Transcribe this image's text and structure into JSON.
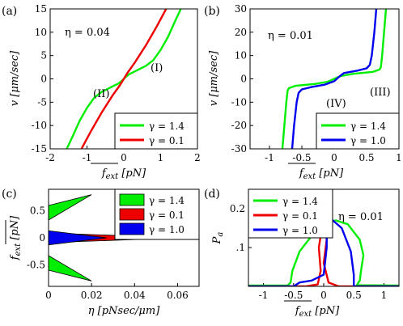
{
  "chart_data": [
    {
      "panel": "(a)",
      "type": "line",
      "xlabel": "f_ext [pN]",
      "ylabel": "v [μm/sec]",
      "xlim": [
        -2,
        2
      ],
      "ylim": [
        -15,
        15
      ],
      "xticks": [
        -2,
        -1,
        0,
        1,
        2
      ],
      "yticks": [
        -15,
        -10,
        -5,
        0,
        5,
        10,
        15
      ],
      "annotation": "η = 0.04",
      "curve_labels": [
        "(I)",
        "(II)"
      ],
      "legend": "bottom-right",
      "series": [
        {
          "name": "γ = 1.4",
          "color": "#00ee00",
          "x": [
            -1.55,
            -1.4,
            -1.2,
            -1.0,
            -0.8,
            -0.6,
            -0.45,
            -0.3,
            -0.15,
            -0.05,
            0.0,
            0.05,
            0.15,
            0.3,
            0.45,
            0.6,
            0.8,
            1.0,
            1.2,
            1.4,
            1.55
          ],
          "y": [
            -15,
            -12.5,
            -9,
            -6.2,
            -4.0,
            -2.8,
            -2.2,
            -1.6,
            -1.0,
            -0.4,
            0,
            0.4,
            1.0,
            1.6,
            2.2,
            2.8,
            4.0,
            6.2,
            9,
            12.5,
            15
          ]
        },
        {
          "name": "γ = 0.1",
          "color": "#ee0000",
          "x": [
            -1.15,
            -0.9,
            -0.6,
            -0.3,
            -0.1,
            0.0,
            0.1,
            0.3,
            0.6,
            0.9,
            1.15
          ],
          "y": [
            -15,
            -11.3,
            -7.2,
            -3.5,
            -1.3,
            0,
            1.3,
            3.5,
            7.2,
            11.3,
            15
          ]
        }
      ]
    },
    {
      "panel": "(b)",
      "type": "line",
      "xlabel": "f_ext [pN]",
      "ylabel": "v [μm/sec]",
      "xlim": [
        -1.3,
        1.0
      ],
      "ylim": [
        -30,
        30
      ],
      "xticks": [
        -1,
        -0.5,
        0,
        0.5,
        1
      ],
      "xticklabels": [
        "-1",
        "-0.5",
        "0",
        "0.5",
        "1"
      ],
      "yticks": [
        -30,
        -20,
        -10,
        0,
        10,
        20,
        30
      ],
      "annotation": "η = 0.01",
      "curve_labels": [
        "(IV)",
        "(III)"
      ],
      "legend": "bottom-right",
      "series": [
        {
          "name": "γ = 1.4",
          "color": "#00ee00",
          "x": [
            -0.8,
            -0.77,
            -0.74,
            -0.72,
            -0.7,
            -0.6,
            -0.3,
            -0.1,
            0.0,
            0.1,
            0.3,
            0.6,
            0.7,
            0.72,
            0.74,
            0.77,
            0.8
          ],
          "y": [
            -30,
            -20,
            -10,
            -5,
            -4,
            -3,
            -2.2,
            -1.2,
            0,
            1.2,
            2.2,
            3,
            4,
            5,
            10,
            20,
            30
          ]
        },
        {
          "name": "γ = 1.0",
          "color": "#0000ee",
          "x": [
            -0.65,
            -0.62,
            -0.58,
            -0.55,
            -0.5,
            -0.35,
            -0.15,
            0.0,
            0.08,
            0.15,
            0.35,
            0.5,
            0.55,
            0.58,
            0.62,
            0.65
          ],
          "y": [
            -30,
            -20,
            -10,
            -6,
            -4.5,
            -3.5,
            -2.5,
            -1.0,
            1.0,
            2.5,
            3.5,
            4.5,
            6,
            10,
            20,
            30
          ]
        }
      ]
    },
    {
      "panel": "(c)",
      "type": "area",
      "xlabel": "η [pNsec/μm]",
      "ylabel": "f_ext [pN]",
      "xlim": [
        0,
        0.07
      ],
      "ylim": [
        -0.9,
        0.9
      ],
      "xticks": [
        0,
        0.02,
        0.04,
        0.06
      ],
      "xticklabels": [
        "0",
        "0.02",
        "0.04",
        "0.06"
      ],
      "yticks": [
        -0.5,
        0,
        0.5
      ],
      "legend": "top-right",
      "regions": [
        {
          "name": "γ = 1.4",
          "color": "#00ee00",
          "upper": {
            "eta": [
              0,
              0.02
            ],
            "low": [
              0.33,
              0.8
            ],
            "high": [
              0.6,
              0.8
            ]
          },
          "lower": {
            "eta": [
              0,
              0.02
            ],
            "low": [
              -0.6,
              -0.8
            ],
            "high": [
              -0.33,
              -0.8
            ]
          }
        },
        {
          "name": "γ = 0.1",
          "color": "#ee0000",
          "band": {
            "eta": [
              0,
              0.062
            ],
            "half_width": [
              0.09,
              0.0
            ]
          }
        },
        {
          "name": "γ = 1.0",
          "color": "#0000ee",
          "band": {
            "eta": [
              0,
              0.027
            ],
            "half_width": [
              0.13,
              0.0
            ]
          }
        }
      ]
    },
    {
      "panel": "(d)",
      "type": "line",
      "xlabel": "f_ext [pN]",
      "ylabel": "P_a",
      "xlim": [
        -1.25,
        1.25
      ],
      "ylim": [
        0,
        0.25
      ],
      "xticks": [
        -1,
        -0.5,
        0,
        0.5,
        1
      ],
      "xticklabels": [
        "-1",
        "-0.5",
        "0",
        "0.5",
        "1"
      ],
      "yticks": [
        0.1,
        0.2
      ],
      "yticklabels": [
        ".1",
        "0.2"
      ],
      "annotation": "η = 0.01",
      "legend": "top-left",
      "series": [
        {
          "name": "γ = 1.4",
          "color": "#00ee00",
          "x": [
            -1.25,
            -0.6,
            -0.55,
            -0.52,
            -0.4,
            -0.2,
            0.0,
            0.2,
            0.4,
            0.6,
            0.66,
            0.62,
            0.6,
            0.55,
            1.25
          ],
          "y": [
            0.002,
            0.002,
            0.01,
            0.04,
            0.09,
            0.13,
            0.16,
            0.17,
            0.16,
            0.12,
            0.08,
            0.04,
            0.015,
            0.003,
            0.002
          ],
          "note": "closed loop branch"
        },
        {
          "name": "γ = 0.1",
          "color": "#ee0000",
          "x": [
            -1.25,
            -0.3,
            -0.1,
            -0.05,
            -0.08,
            -0.02,
            0.02,
            0.05,
            0.0,
            0.08,
            0.25,
            1.25
          ],
          "y": [
            0.0,
            0.0,
            0.005,
            0.04,
            0.1,
            0.16,
            0.165,
            0.12,
            0.06,
            0.01,
            0.0,
            0.0
          ]
        },
        {
          "name": "γ = 1.0",
          "color": "#0000ee",
          "x": [
            -1.25,
            -0.5,
            -0.4,
            -0.2,
            0.0,
            0.05,
            0.05,
            0.15,
            0.3,
            0.45,
            0.5,
            0.5,
            1.25
          ],
          "y": [
            0.0,
            0.0,
            0.01,
            0.015,
            0.03,
            0.1,
            0.16,
            0.17,
            0.15,
            0.09,
            0.03,
            0.0,
            0.0
          ]
        }
      ]
    }
  ]
}
